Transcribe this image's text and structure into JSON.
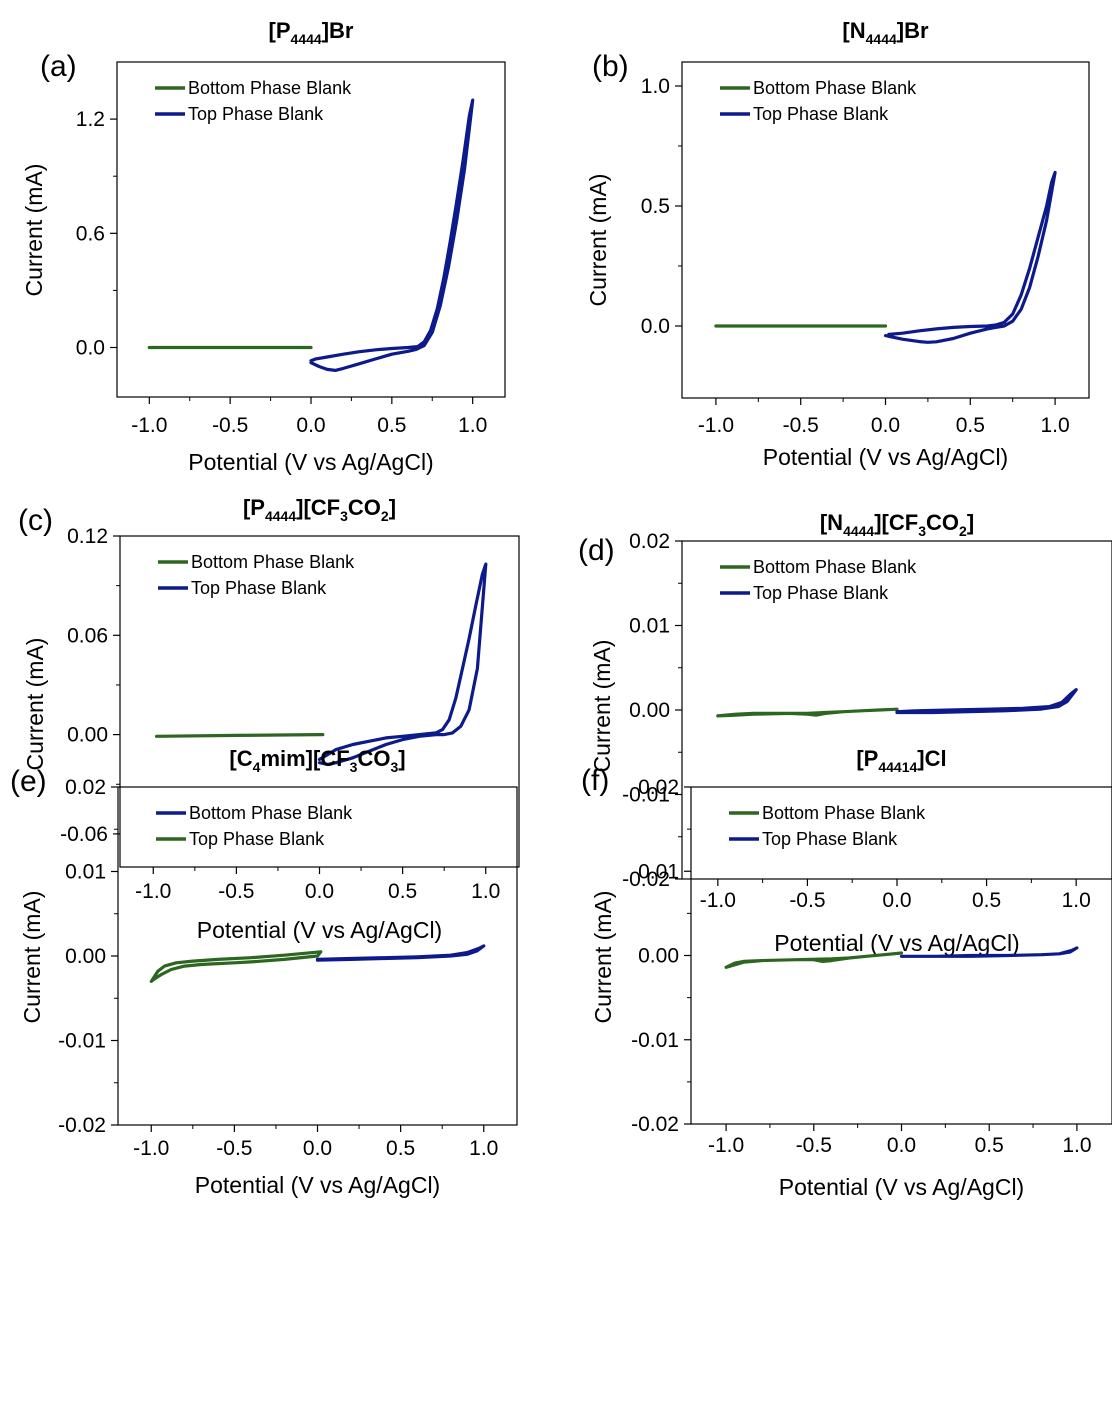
{
  "figure": {
    "colors": {
      "green": "#2d6621",
      "blue": "#0c1a8c"
    },
    "legend_default": [
      "Bottom Phase Blank",
      "Top Phase Blank"
    ]
  },
  "chart_data": [
    {
      "type": "line",
      "panel": "(a)",
      "title": [
        "[P",
        "4444",
        "]Br"
      ],
      "xlabel": "Potential (V vs  Ag/AgCl)",
      "ylabel": "Current  (mA)",
      "xlim": [
        -1.2,
        1.2
      ],
      "ylim": [
        -0.26,
        1.5
      ],
      "xticks": [
        -1.0,
        -0.5,
        0.0,
        0.5,
        1.0
      ],
      "xticklabels": [
        "-1.0",
        "-0.5",
        "0.0",
        "0.5",
        "1.0"
      ],
      "yticks": [
        0.0,
        0.6,
        1.2
      ],
      "yticklabels": [
        "0.0",
        "0.6",
        "1.2"
      ],
      "legend_position": "top-left",
      "series": [
        {
          "name": "Bottom Phase Blank",
          "color": "green",
          "x": [
            -1.0,
            -0.5,
            0.0
          ],
          "y": [
            0.0,
            0.0,
            0.0
          ]
        },
        {
          "name": "Top Phase Blank",
          "color": "blue",
          "x": [
            0.0,
            0.05,
            0.1,
            0.15,
            0.2,
            0.3,
            0.4,
            0.5,
            0.6,
            0.65,
            0.7,
            0.75,
            0.8,
            0.85,
            0.9,
            0.95,
            1.0,
            0.98,
            0.94,
            0.9,
            0.86,
            0.82,
            0.78,
            0.74,
            0.7,
            0.66,
            0.6,
            0.5,
            0.4,
            0.3,
            0.2,
            0.1,
            0.03,
            0.0
          ],
          "y": [
            -0.08,
            -0.1,
            -0.115,
            -0.12,
            -0.11,
            -0.085,
            -0.06,
            -0.035,
            -0.02,
            -0.01,
            0.01,
            0.08,
            0.22,
            0.42,
            0.66,
            0.94,
            1.3,
            1.22,
            0.98,
            0.76,
            0.55,
            0.36,
            0.2,
            0.09,
            0.03,
            0.005,
            0.0,
            -0.005,
            -0.012,
            -0.022,
            -0.035,
            -0.05,
            -0.06,
            -0.07
          ]
        }
      ]
    },
    {
      "type": "line",
      "panel": "(b)",
      "title": [
        "[N",
        "4444",
        "]Br"
      ],
      "xlabel": "Potential (V vs Ag/AgCl)",
      "ylabel": "Current (mA)",
      "xlim": [
        -1.2,
        1.2
      ],
      "ylim": [
        -0.3,
        1.1
      ],
      "xticks": [
        -1.0,
        -0.5,
        0.0,
        0.5,
        1.0
      ],
      "xticklabels": [
        "-1.0",
        "-0.5",
        "0.0",
        "0.5",
        "1.0"
      ],
      "yticks": [
        0.0,
        0.5,
        1.0
      ],
      "yticklabels": [
        "0.0",
        "0.5",
        "1.0"
      ],
      "legend_position": "top-left",
      "series": [
        {
          "name": "Bottom Phase Blank",
          "color": "green",
          "x": [
            -1.0,
            -0.5,
            0.0
          ],
          "y": [
            0.0,
            0.0,
            0.0
          ]
        },
        {
          "name": "Top Phase Blank",
          "color": "blue",
          "x": [
            0.0,
            0.1,
            0.2,
            0.25,
            0.3,
            0.4,
            0.5,
            0.6,
            0.65,
            0.7,
            0.75,
            0.8,
            0.85,
            0.9,
            0.95,
            1.0,
            0.98,
            0.95,
            0.9,
            0.85,
            0.8,
            0.75,
            0.7,
            0.65,
            0.6,
            0.5,
            0.4,
            0.3,
            0.2,
            0.1,
            0.02
          ],
          "y": [
            -0.04,
            -0.055,
            -0.065,
            -0.068,
            -0.066,
            -0.052,
            -0.03,
            -0.012,
            -0.006,
            0.0,
            0.02,
            0.07,
            0.16,
            0.29,
            0.44,
            0.64,
            0.6,
            0.5,
            0.37,
            0.24,
            0.13,
            0.05,
            0.015,
            0.004,
            0.0,
            -0.002,
            -0.006,
            -0.012,
            -0.02,
            -0.03,
            -0.035
          ]
        }
      ]
    },
    {
      "type": "line",
      "panel": "(c)",
      "title": [
        "[P",
        "4444",
        "][CF",
        "3",
        "CO",
        "2",
        "]"
      ],
      "xlabel": "Potential (V vs Ag/AgCl)",
      "ylabel": "Current (mA)",
      "xlim": [
        -1.2,
        1.2
      ],
      "ylim": [
        -0.08,
        0.12
      ],
      "xticks": [
        -1.0,
        -0.5,
        0.0,
        0.5,
        1.0
      ],
      "xticklabels": [
        "-1.0",
        "-0.5",
        "0.0",
        "0.5",
        "1.0"
      ],
      "yticks": [
        -0.06,
        0.0,
        0.06,
        0.12
      ],
      "yticklabels": [
        "-0.06",
        "0.00",
        "0.06",
        "0.12"
      ],
      "legend_position": "top-left",
      "series": [
        {
          "name": "Bottom Phase Blank",
          "color": "green",
          "x": [
            -0.98,
            -0.5,
            0.0,
            0.02
          ],
          "y": [
            -0.001,
            -0.0005,
            0.0,
            0.0
          ]
        },
        {
          "name": "Top Phase Blank",
          "color": "blue",
          "x": [
            0.0,
            0.05,
            0.1,
            0.2,
            0.3,
            0.4,
            0.5,
            0.6,
            0.7,
            0.75,
            0.8,
            0.85,
            0.9,
            0.95,
            1.0,
            0.98,
            0.94,
            0.9,
            0.86,
            0.82,
            0.78,
            0.74,
            0.7,
            0.6,
            0.5,
            0.4,
            0.3,
            0.2,
            0.1,
            0.05,
            0.0
          ],
          "y": [
            -0.017,
            -0.018,
            -0.017,
            -0.014,
            -0.01,
            -0.006,
            -0.003,
            -0.001,
            0.0,
            0.0,
            0.001,
            0.005,
            0.015,
            0.04,
            0.103,
            0.097,
            0.078,
            0.058,
            0.04,
            0.022,
            0.009,
            0.003,
            0.001,
            0.0,
            -0.001,
            -0.002,
            -0.004,
            -0.006,
            -0.009,
            -0.012,
            -0.015
          ]
        }
      ]
    },
    {
      "type": "line",
      "panel": "(d)",
      "title": [
        "[N",
        "4444",
        "][CF",
        "3",
        "CO",
        "2",
        "]"
      ],
      "xlabel": "Potential (V vs  Ag/AgCl)",
      "ylabel": "Current (mA)",
      "xlim": [
        -1.2,
        1.2
      ],
      "ylim": [
        -0.02,
        0.02
      ],
      "xticks": [
        -1.0,
        -0.5,
        0.0,
        0.5,
        1.0
      ],
      "xticklabels": [
        "-1.0",
        "-0.5",
        "0.0",
        "0.5",
        "1.0"
      ],
      "yticks": [
        -0.02,
        -0.01,
        0.0,
        0.01,
        0.02
      ],
      "yticklabels": [
        "-0.02",
        "-0.01",
        "0.00",
        "0.01",
        "0.02"
      ],
      "legend_position": "top-left",
      "series": [
        {
          "name": "Bottom Phase Blank",
          "color": "green",
          "x": [
            -1.0,
            -0.9,
            -0.8,
            -0.6,
            -0.5,
            -0.45,
            -0.4,
            -0.3,
            -0.2,
            -0.1,
            0.0,
            -0.1,
            -0.2,
            -0.3,
            -0.4,
            -0.5,
            -0.6,
            -0.8,
            -0.9,
            -1.0
          ],
          "y": [
            -0.0007,
            -0.0005,
            -0.0004,
            -0.0004,
            -0.0005,
            -0.0006,
            -0.0004,
            -0.0002,
            -0.0001,
            0.0,
            0.0001,
            0.0,
            -0.0001,
            -0.0002,
            -0.0003,
            -0.0004,
            -0.0004,
            -0.0005,
            -0.0006,
            -0.0007
          ]
        },
        {
          "name": "Top Phase Blank",
          "color": "blue",
          "x": [
            0.0,
            0.2,
            0.4,
            0.6,
            0.8,
            0.9,
            0.95,
            1.0,
            0.97,
            0.92,
            0.85,
            0.7,
            0.5,
            0.3,
            0.1,
            0.0
          ],
          "y": [
            -0.0003,
            -0.0003,
            -0.0002,
            -0.0001,
            0.0001,
            0.0004,
            0.001,
            0.0024,
            0.0019,
            0.0009,
            0.0004,
            0.0002,
            0.0001,
            0.0,
            -0.0001,
            -0.0002
          ]
        }
      ]
    },
    {
      "type": "line",
      "panel": "(e)",
      "title": [
        "[C",
        "4",
        "mim][CF",
        "3",
        "CO",
        "3",
        "]"
      ],
      "xlabel": "Potential (V vs Ag/AgCl)",
      "ylabel": "Current (mA)",
      "xlim": [
        -1.2,
        1.2
      ],
      "ylim": [
        -0.02,
        0.02
      ],
      "xticks": [
        -1.0,
        -0.5,
        0.0,
        0.5,
        1.0
      ],
      "xticklabels": [
        "-1.0",
        "-0.5",
        "0.0",
        "0.5",
        "1.0"
      ],
      "yticks": [
        -0.02,
        -0.01,
        0.0,
        0.01,
        0.02
      ],
      "yticklabels": [
        "-0.02",
        "-0.01",
        "0.00",
        "0.01",
        "0.02"
      ],
      "legend": [
        "Bottom Phase Blank",
        "Top Phase Blank"
      ],
      "legend_colors": [
        "blue",
        "green"
      ],
      "legend_position": "top-left",
      "series": [
        {
          "color": "green",
          "x": [
            0.02,
            -0.2,
            -0.4,
            -0.6,
            -0.75,
            -0.85,
            -0.92,
            -0.96,
            -1.0,
            -0.98,
            -0.94,
            -0.88,
            -0.8,
            -0.7,
            -0.6,
            -0.5,
            -0.4,
            -0.2,
            0.0,
            0.02
          ],
          "y": [
            0.0005,
            0.0001,
            -0.0002,
            -0.0004,
            -0.0006,
            -0.0008,
            -0.0012,
            -0.0018,
            -0.003,
            -0.0027,
            -0.0022,
            -0.0016,
            -0.0012,
            -0.001,
            -0.0009,
            -0.0008,
            -0.0007,
            -0.0004,
            0.0,
            0.0005
          ]
        },
        {
          "color": "blue",
          "x": [
            0.0,
            0.2,
            0.4,
            0.6,
            0.8,
            0.9,
            0.96,
            1.0,
            0.97,
            0.9,
            0.8,
            0.6,
            0.4,
            0.2,
            0.0
          ],
          "y": [
            -0.0005,
            -0.0004,
            -0.0003,
            -0.0002,
            0.0,
            0.0002,
            0.0006,
            0.0012,
            0.0009,
            0.0004,
            0.0001,
            -0.0001,
            -0.0002,
            -0.0003,
            -0.0004
          ]
        }
      ]
    },
    {
      "type": "line",
      "panel": "(f)",
      "title": [
        "[P",
        "44414",
        "]Cl"
      ],
      "xlabel": "Potential (V vs Ag/AgCl)",
      "ylabel": "Current (mA)",
      "xlim": [
        -1.2,
        1.2
      ],
      "ylim": [
        -0.02,
        0.02
      ],
      "xticks": [
        -1.0,
        -0.5,
        0.0,
        0.5,
        1.0
      ],
      "xticklabels": [
        "-1.0",
        "-0.5",
        "0.0",
        "0.5",
        "1.0"
      ],
      "yticks": [
        -0.02,
        -0.01,
        0.0,
        0.01,
        0.02
      ],
      "yticklabels": [
        "-0.02",
        "-0.01",
        "0.00",
        "0.01",
        "0.02"
      ],
      "legend_position": "top-left",
      "series": [
        {
          "name": "Bottom Phase Blank",
          "color": "green",
          "x": [
            -1.0,
            -0.95,
            -0.9,
            -0.8,
            -0.6,
            -0.5,
            -0.45,
            -0.4,
            -0.3,
            -0.2,
            -0.1,
            0.0,
            -0.1,
            -0.2,
            -0.3,
            -0.4,
            -0.6,
            -0.8,
            -0.9,
            -1.0
          ],
          "y": [
            -0.0014,
            -0.0009,
            -0.0007,
            -0.0006,
            -0.0005,
            -0.0005,
            -0.0007,
            -0.0006,
            -0.0003,
            -0.0001,
            0.0001,
            0.0003,
            0.0001,
            -0.0001,
            -0.0003,
            -0.0004,
            -0.0005,
            -0.0006,
            -0.0008,
            -0.0014
          ]
        },
        {
          "name": "Top Phase Blank",
          "color": "blue",
          "x": [
            0.0,
            0.2,
            0.4,
            0.6,
            0.8,
            0.9,
            0.96,
            1.0,
            0.97,
            0.9,
            0.8,
            0.6,
            0.4,
            0.2,
            0.0
          ],
          "y": [
            -0.0001,
            -0.0001,
            0.0,
            0.0,
            0.0001,
            0.0002,
            0.0004,
            0.0009,
            0.0006,
            0.0002,
            0.0001,
            0.0,
            -0.0001,
            -0.0001,
            -0.0001
          ]
        }
      ]
    }
  ]
}
